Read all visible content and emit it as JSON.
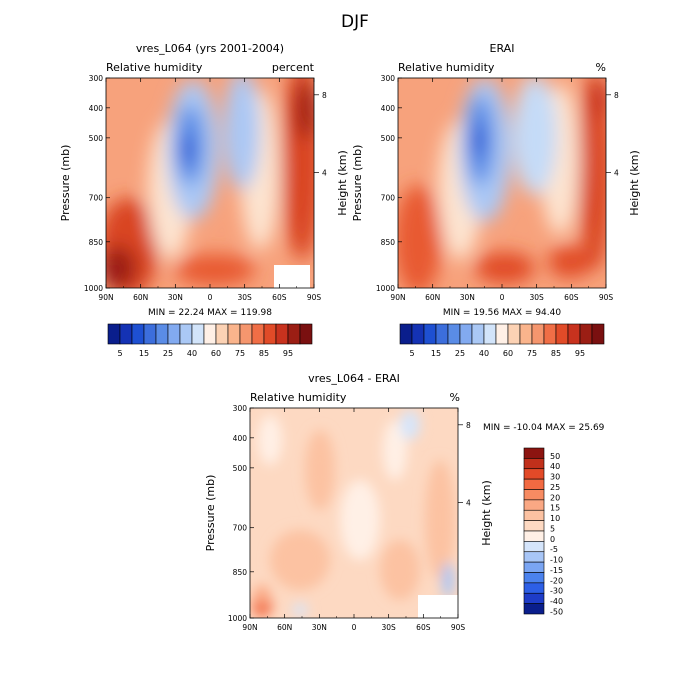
{
  "main_title": "DJF",
  "chart_data": [
    {
      "type": "heatmap",
      "id": "top-left",
      "title": "vres_L064 (yrs 2001-2004)",
      "left_label": "Relative humidity",
      "right_label": "percent",
      "ylabel": "Pressure (mb)",
      "ylabel_right": "Height (km)",
      "x_ticks": [
        "90N",
        "60N",
        "30N",
        "0",
        "30S",
        "60S",
        "90S"
      ],
      "y_ticks": [
        "300",
        "400",
        "500",
        "700",
        "850",
        "1000"
      ],
      "y_ticks_right": [
        "8",
        "4"
      ],
      "stats": "MIN =  22.24   MAX = 119.98",
      "colorbar_labels": [
        "5",
        "15",
        "25",
        "40",
        "60",
        "75",
        "85",
        "95"
      ]
    },
    {
      "type": "heatmap",
      "id": "top-right",
      "title": "ERAI",
      "left_label": "Relative humidity",
      "right_label": "%",
      "ylabel": "Pressure (mb)",
      "ylabel_right": "Height (km)",
      "x_ticks": [
        "90N",
        "60N",
        "30N",
        "0",
        "30S",
        "60S",
        "90S"
      ],
      "y_ticks": [
        "300",
        "400",
        "500",
        "700",
        "850",
        "1000"
      ],
      "y_ticks_right": [
        "8",
        "4"
      ],
      "stats": "MIN =  19.56   MAX =  94.40",
      "colorbar_labels": [
        "5",
        "15",
        "25",
        "40",
        "60",
        "75",
        "85",
        "95"
      ]
    },
    {
      "type": "heatmap",
      "id": "bottom",
      "title": "vres_L064 - ERAI",
      "left_label": "Relative humidity",
      "right_label": "%",
      "ylabel": "Pressure (mb)",
      "ylabel_right": "Height (km)",
      "x_ticks": [
        "90N",
        "60N",
        "30N",
        "0",
        "30S",
        "60S",
        "90S"
      ],
      "y_ticks": [
        "300",
        "400",
        "500",
        "700",
        "850",
        "1000"
      ],
      "y_ticks_right": [
        "8",
        "4"
      ],
      "stats": "MIN = -10.04   MAX =  25.69",
      "colorbar_labels": [
        "50",
        "40",
        "30",
        "25",
        "20",
        "15",
        "10",
        "5",
        "0",
        "-5",
        "-10",
        "-15",
        "-20",
        "-30",
        "-40",
        "-50"
      ]
    }
  ],
  "palette": {
    "rh": [
      "#0a1e8c",
      "#1432b4",
      "#1e50d2",
      "#3c6edc",
      "#5a8ce6",
      "#82aaf0",
      "#aac8f5",
      "#d2e4fa",
      "#fff0e6",
      "#fcd2b4",
      "#fab48c",
      "#f5966e",
      "#f06e46",
      "#e14b28",
      "#c8321e",
      "#9b1e14",
      "#7a1010"
    ],
    "diff": [
      "#0a1e8c",
      "#1e3cc8",
      "#2d5fe6",
      "#4b82ee",
      "#7aa5f3",
      "#a8c6f7",
      "#d5e5fb",
      "#fff0e6",
      "#fdd9c2",
      "#fcc2a2",
      "#faa884",
      "#f78b62",
      "#f26a42",
      "#e24a28",
      "#c1301b",
      "#8c1410"
    ]
  }
}
